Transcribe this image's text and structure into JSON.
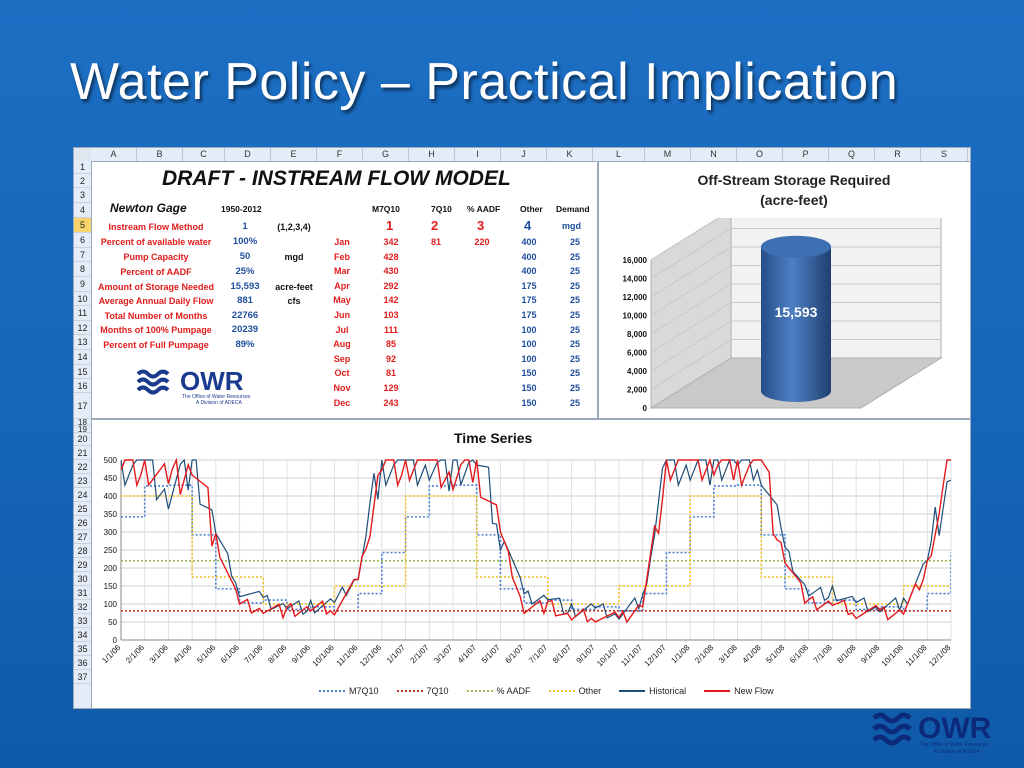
{
  "slide": {
    "title": "Water Policy – Practical Implication"
  },
  "sheet": {
    "columns": [
      "A",
      "B",
      "C",
      "D",
      "E",
      "F",
      "G",
      "H",
      "I",
      "J",
      "K",
      "L",
      "M",
      "N",
      "O",
      "P",
      "Q",
      "R",
      "S"
    ],
    "selected_row": "5",
    "model_title": "DRAFT - INSTREAM FLOW MODEL",
    "gage_name": "Newton Gage",
    "period": "1950-2012",
    "headers": [
      "M7Q10",
      "7Q10",
      "% AADF",
      "Other",
      "Demand"
    ],
    "method_codes": [
      "1",
      "2",
      "3",
      "4"
    ],
    "demand_unit": "mgd",
    "params": [
      {
        "label": "Instream Flow Method",
        "value": "1",
        "unit": "(1,2,3,4)"
      },
      {
        "label": "Percent of available water",
        "value": "100%",
        "unit": ""
      },
      {
        "label": "Pump Capacity",
        "value": "50",
        "unit": "mgd"
      },
      {
        "label": "Percent of AADF",
        "value": "25%",
        "unit": ""
      },
      {
        "label": "Amount of Storage Needed",
        "value": "15,593",
        "unit": "acre-feet"
      },
      {
        "label": "Average Annual Daily Flow",
        "value": "881",
        "unit": "cfs"
      },
      {
        "label": "Total Number of Months",
        "value": "22766",
        "unit": ""
      },
      {
        "label": "Months of 100% Pumpage",
        "value": "20239",
        "unit": ""
      },
      {
        "label": "Percent of Full Pumpage",
        "value": "89%",
        "unit": ""
      }
    ],
    "months": [
      {
        "m": "Jan",
        "m7q10": "342",
        "q710": "81",
        "aadf": "220",
        "other": "400",
        "demand": "25"
      },
      {
        "m": "Feb",
        "m7q10": "428",
        "q710": "",
        "aadf": "",
        "other": "400",
        "demand": "25"
      },
      {
        "m": "Mar",
        "m7q10": "430",
        "q710": "",
        "aadf": "",
        "other": "400",
        "demand": "25"
      },
      {
        "m": "Apr",
        "m7q10": "292",
        "q710": "",
        "aadf": "",
        "other": "175",
        "demand": "25"
      },
      {
        "m": "May",
        "m7q10": "142",
        "q710": "",
        "aadf": "",
        "other": "175",
        "demand": "25"
      },
      {
        "m": "Jun",
        "m7q10": "103",
        "q710": "",
        "aadf": "",
        "other": "175",
        "demand": "25"
      },
      {
        "m": "Jul",
        "m7q10": "111",
        "q710": "",
        "aadf": "",
        "other": "100",
        "demand": "25"
      },
      {
        "m": "Aug",
        "m7q10": "85",
        "q710": "",
        "aadf": "",
        "other": "100",
        "demand": "25"
      },
      {
        "m": "Sep",
        "m7q10": "92",
        "q710": "",
        "aadf": "",
        "other": "100",
        "demand": "25"
      },
      {
        "m": "Oct",
        "m7q10": "81",
        "q710": "",
        "aadf": "",
        "other": "150",
        "demand": "25"
      },
      {
        "m": "Nov",
        "m7q10": "129",
        "q710": "",
        "aadf": "",
        "other": "150",
        "demand": "25"
      },
      {
        "m": "Dec",
        "m7q10": "243",
        "q710": "",
        "aadf": "",
        "other": "150",
        "demand": "25"
      }
    ],
    "logo": {
      "text": "OWR",
      "line1": "The Office of Water Resources",
      "line2": "A Division of ADECA"
    }
  },
  "chart_data": [
    {
      "type": "bar",
      "title": "Off-Stream Storage Required\n(acre-feet)",
      "title_line1": "Off-Stream Storage Required",
      "title_line2": "(acre-feet)",
      "categories": [
        ""
      ],
      "values": [
        15593
      ],
      "data_label": "15,593",
      "ylim": [
        0,
        16000
      ],
      "yticks": [
        "0",
        "2,000",
        "4,000",
        "6,000",
        "8,000",
        "10,000",
        "12,000",
        "14,000",
        "16,000"
      ],
      "style": "3d-cylinder",
      "bar_color": "#2f5f9e"
    },
    {
      "type": "line",
      "title": "Time Series",
      "ylim": [
        0,
        500
      ],
      "yticks": [
        "0",
        "50",
        "100",
        "150",
        "200",
        "250",
        "300",
        "350",
        "400",
        "450",
        "500"
      ],
      "x_tick_labels": [
        "1/1/06",
        "2/1/06",
        "3/1/06",
        "4/1/06",
        "5/1/06",
        "6/1/06",
        "7/1/06",
        "8/1/06",
        "9/1/06",
        "10/1/06",
        "11/1/06",
        "12/1/06",
        "1/1/07",
        "2/1/07",
        "3/1/07",
        "4/1/07",
        "5/1/07",
        "6/1/07",
        "7/1/07",
        "8/1/07",
        "9/1/07",
        "10/1/07",
        "11/1/07",
        "12/1/07",
        "1/1/08",
        "2/1/08",
        "3/1/08",
        "4/1/08",
        "5/1/08",
        "6/1/08",
        "7/1/08",
        "8/1/08",
        "9/1/08",
        "10/1/08",
        "11/1/08",
        "12/1/08"
      ],
      "legend_position": "bottom",
      "series": [
        {
          "name": "M7Q10",
          "color": "#4a7fd0",
          "style": "dotted",
          "values": [
            342,
            428,
            430,
            292,
            142,
            103,
            111,
            85,
            92,
            81,
            129,
            243,
            342,
            428,
            430,
            292,
            142,
            103,
            111,
            85,
            92,
            81,
            129,
            243,
            342,
            428,
            430,
            292,
            142,
            103,
            111,
            85,
            92,
            81,
            129,
            243
          ]
        },
        {
          "name": "7Q10",
          "color": "#c0392b",
          "style": "dotted",
          "values": [
            81,
            81,
            81,
            81,
            81,
            81,
            81,
            81,
            81,
            81,
            81,
            81,
            81,
            81,
            81,
            81,
            81,
            81,
            81,
            81,
            81,
            81,
            81,
            81,
            81,
            81,
            81,
            81,
            81,
            81,
            81,
            81,
            81,
            81,
            81,
            81
          ]
        },
        {
          "name": "% AADF",
          "color": "#9bbb59",
          "style": "dotted",
          "values": [
            220,
            220,
            220,
            220,
            220,
            220,
            220,
            220,
            220,
            220,
            220,
            220,
            220,
            220,
            220,
            220,
            220,
            220,
            220,
            220,
            220,
            220,
            220,
            220,
            220,
            220,
            220,
            220,
            220,
            220,
            220,
            220,
            220,
            220,
            220,
            220
          ]
        },
        {
          "name": "Other",
          "color": "#f2c11f",
          "style": "dotted",
          "values": [
            400,
            400,
            400,
            175,
            175,
            175,
            100,
            100,
            100,
            150,
            150,
            150,
            400,
            400,
            400,
            175,
            175,
            175,
            100,
            100,
            100,
            150,
            150,
            150,
            400,
            400,
            400,
            175,
            175,
            175,
            100,
            100,
            100,
            150,
            150,
            150
          ]
        },
        {
          "name": "Historical",
          "color": "#1f4e79",
          "style": "solid",
          "values": [
            500,
            500,
            420,
            500,
            300,
            140,
            110,
            95,
            90,
            100,
            180,
            500,
            500,
            500,
            480,
            500,
            320,
            120,
            120,
            80,
            85,
            70,
            110,
            500,
            500,
            500,
            500,
            500,
            250,
            130,
            130,
            100,
            90,
            100,
            220,
            500
          ]
        },
        {
          "name": "New Flow",
          "color": "#e31a1c",
          "style": "solid",
          "values": [
            500,
            500,
            420,
            500,
            280,
            100,
            90,
            80,
            85,
            90,
            160,
            500,
            500,
            500,
            460,
            500,
            300,
            90,
            95,
            60,
            70,
            55,
            100,
            500,
            500,
            500,
            500,
            500,
            230,
            100,
            100,
            80,
            75,
            80,
            200,
            500
          ]
        }
      ]
    }
  ]
}
